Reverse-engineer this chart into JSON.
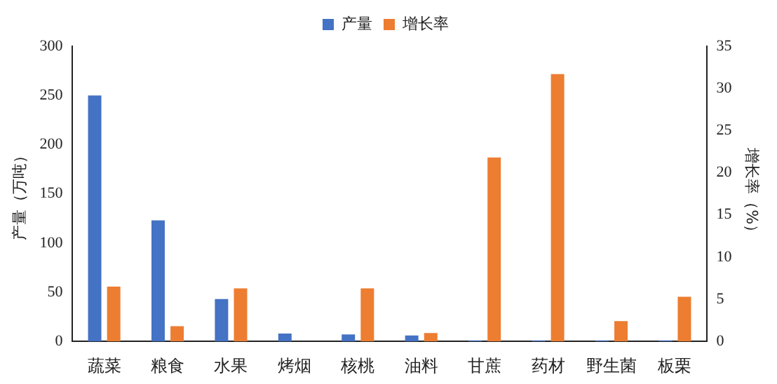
{
  "chart_data": {
    "type": "bar",
    "categories": [
      "蔬菜",
      "粮食",
      "水果",
      "烤烟",
      "核桃",
      "油料",
      "甘蔗",
      "药材",
      "野生菌",
      "板栗"
    ],
    "ylabel": "产量（万吨）",
    "y2label": "增长率（%）",
    "series": [
      {
        "name": "产量",
        "color": "#4472c4",
        "values": [
          250,
          123,
          43,
          8,
          7,
          6,
          1,
          1,
          1,
          1
        ]
      },
      {
        "name": "增长率",
        "color": "#ed7d31",
        "axis": "y2",
        "values": [
          6.5,
          1.8,
          6.3,
          0,
          6.3,
          1.0,
          21.8,
          31.7,
          2.4,
          5.3
        ]
      }
    ],
    "ylim": [
      0,
      300
    ],
    "yticks": [
      0,
      50,
      100,
      150,
      200,
      250,
      300
    ],
    "y2lim": [
      0,
      35
    ],
    "y2ticks": [
      0,
      5,
      10,
      15,
      20,
      25,
      30,
      35
    ],
    "grid": false,
    "legend": "top"
  }
}
